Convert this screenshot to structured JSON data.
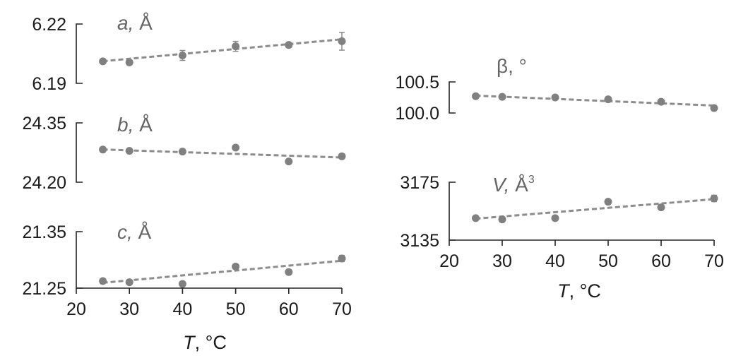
{
  "chart_data": [
    {
      "id": "a",
      "type": "scatter",
      "label_italic": "a,",
      "label_rest": " Å",
      "label_sup": "",
      "x": [
        25,
        30,
        40,
        50,
        60,
        70
      ],
      "y": [
        6.2011,
        6.2006,
        6.2041,
        6.2087,
        6.2094,
        6.2113
      ],
      "err": [
        0.0012,
        0.0012,
        0.0025,
        0.0025,
        0.0012,
        0.0045
      ],
      "fit": [
        [
          25,
          6.2012
        ],
        [
          70,
          6.2123
        ]
      ],
      "ylim": [
        6.19,
        6.22
      ],
      "yticks": [
        6.19,
        6.22
      ],
      "ytick_labels": [
        "6.19",
        "6.22"
      ]
    },
    {
      "id": "b",
      "type": "scatter",
      "label_italic": "b,",
      "label_rest": " Å",
      "label_sup": "",
      "x": [
        25,
        30,
        40,
        50,
        60,
        70
      ],
      "y": [
        24.2825,
        24.2792,
        24.2775,
        24.2875,
        24.2525,
        24.2655
      ],
      "err": [
        0.002,
        0.002,
        0.002,
        0.002,
        0.002,
        0.006
      ],
      "fit": [
        [
          25,
          24.2828
        ],
        [
          70,
          24.2625
        ]
      ],
      "ylim": [
        24.2,
        24.35
      ],
      "yticks": [
        24.2,
        24.35
      ],
      "ytick_labels": [
        "24.20",
        "24.35"
      ]
    },
    {
      "id": "c",
      "type": "scatter",
      "label_italic": "c,",
      "label_rest": " Å",
      "label_sup": "",
      "x": [
        25,
        30,
        40,
        50,
        60,
        70
      ],
      "y": [
        21.2625,
        21.2605,
        21.2575,
        21.2882,
        21.2785,
        21.3025
      ],
      "err": [
        0.0028,
        0.0028,
        0.0028,
        0.004,
        0.004,
        0.0055
      ],
      "fit": [
        [
          25,
          21.2595
        ],
        [
          70,
          21.2985
        ]
      ],
      "ylim": [
        21.25,
        21.35
      ],
      "yticks": [
        21.25,
        21.35
      ],
      "ytick_labels": [
        "21.25",
        "21.35"
      ]
    },
    {
      "id": "beta",
      "type": "scatter",
      "label_italic": "",
      "label_rest": "β, °",
      "label_sup": "",
      "x": [
        25,
        30,
        40,
        50,
        60,
        70
      ],
      "y": [
        100.27,
        100.26,
        100.25,
        100.22,
        100.18,
        100.08
      ],
      "err": [
        0.015,
        0.015,
        0.015,
        0.02,
        0.015,
        0.04
      ],
      "fit": [
        [
          25,
          100.28
        ],
        [
          70,
          100.12
        ]
      ],
      "ylim": [
        100.0,
        100.5
      ],
      "yticks": [
        100.0,
        100.5
      ],
      "ytick_labels": [
        "100.0",
        "100.5"
      ]
    },
    {
      "id": "V",
      "type": "scatter",
      "label_italic": "V,",
      "label_rest": " Å",
      "label_sup": "3",
      "x": [
        25,
        30,
        40,
        50,
        60,
        70
      ],
      "y": [
        3150.2,
        3149.3,
        3150.2,
        3161.5,
        3157.6,
        3163.8
      ],
      "err": [
        0.7,
        0.7,
        1.5,
        1.4,
        1.0,
        2.2
      ],
      "fit": [
        [
          25,
          3149.8
        ],
        [
          70,
          3163.3
        ]
      ],
      "ylim": [
        3135,
        3175
      ],
      "yticks": [
        3135,
        3175
      ],
      "ytick_labels": [
        "3135",
        "3175"
      ]
    }
  ],
  "axes": {
    "xlim": [
      20,
      70
    ],
    "xticks": [
      20,
      30,
      40,
      50,
      60,
      70
    ],
    "xtick_labels": [
      "20",
      "30",
      "40",
      "50",
      "60",
      "70"
    ],
    "xlabel_italic": "T",
    "xlabel_rest": ", °C"
  },
  "colors": {
    "points": "#808080",
    "fit_line": "#8c8c8c",
    "error_bars": "#8c8c8c",
    "axes": "#222222",
    "panel_label": "#666666"
  }
}
